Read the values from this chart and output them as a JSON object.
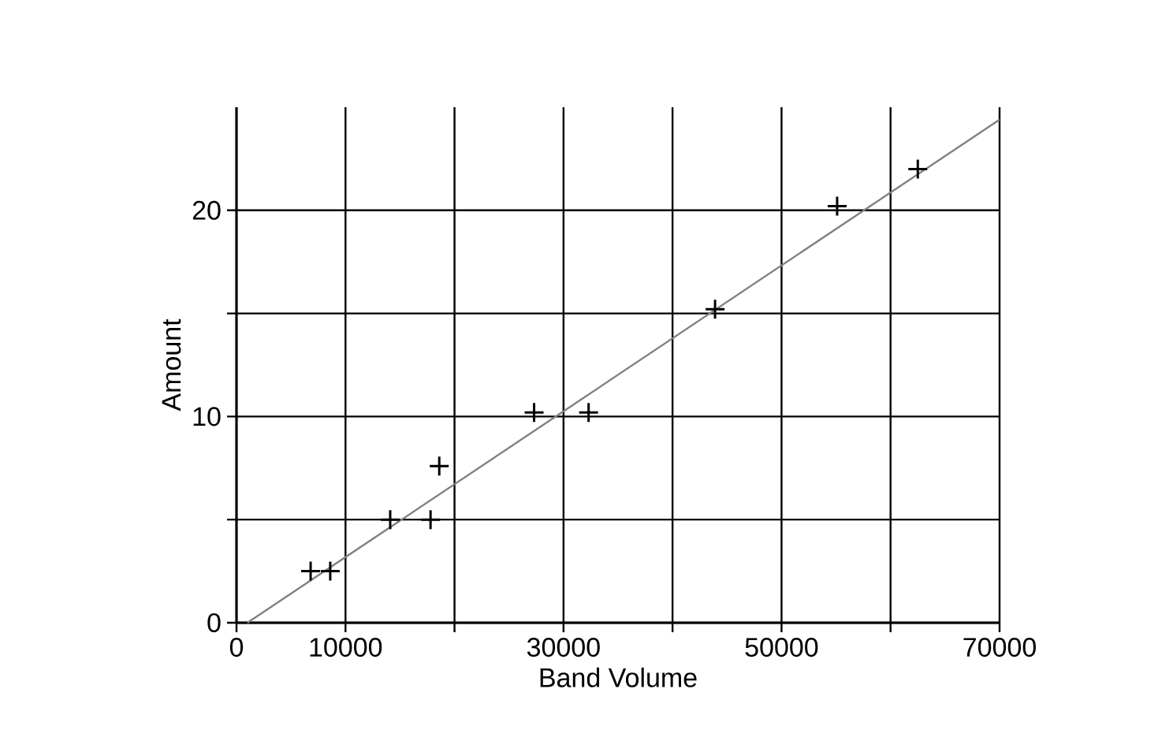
{
  "chart_data": {
    "type": "scatter",
    "xlabel": "Band Volume",
    "ylabel": "Amount",
    "xlim": [
      0,
      70000
    ],
    "ylim": [
      0,
      25
    ],
    "xticks": [
      0,
      10000,
      {
        "value": 20000,
        "label": null
      },
      30000,
      {
        "value": 40000,
        "label": null
      },
      50000,
      {
        "value": 60000,
        "label": null
      },
      70000
    ],
    "yticks": [
      0,
      {
        "value": 5,
        "label": null
      },
      10,
      {
        "value": 15,
        "label": null
      },
      20
    ],
    "grid": true,
    "marker": "cross",
    "series": [
      {
        "color": "#000000",
        "x": [
          6800,
          8600,
          14100,
          17800,
          18600,
          27300,
          32300,
          43900,
          55100,
          62500
        ],
        "values": [
          2.5,
          2.5,
          5.0,
          5.0,
          7.6,
          10.2,
          10.2,
          15.2,
          20.2,
          22.0
        ]
      },
      {
        "type": "line",
        "color": "#808080",
        "marker": "none",
        "x": [
          1000,
          70000
        ],
        "values": [
          0,
          24.4
        ]
      }
    ]
  }
}
